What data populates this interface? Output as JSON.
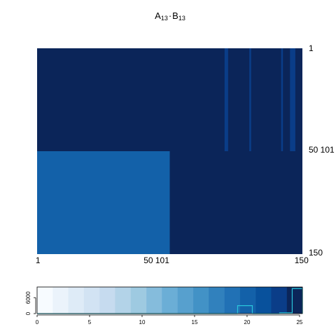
{
  "chart_data": {
    "type": "heatmap",
    "title": {
      "a": "A",
      "a_sub": "13",
      "dot": "·",
      "b": "B",
      "b_sub": "13"
    },
    "n_rows": 150,
    "n_cols": 150,
    "blocks": [
      {
        "rows": [
          1,
          75
        ],
        "cols": [
          1,
          150
        ],
        "value": 25
      },
      {
        "rows": [
          76,
          150
        ],
        "cols": [
          1,
          75
        ],
        "value": 19.8
      },
      {
        "rows": [
          76,
          150
        ],
        "cols": [
          76,
          150
        ],
        "value": 25
      },
      {
        "rows": [
          1,
          75
        ],
        "cols": [
          107,
          108
        ],
        "value": 23.5
      },
      {
        "rows": [
          1,
          75
        ],
        "cols": [
          121,
          121
        ],
        "value": 23.5
      },
      {
        "rows": [
          1,
          75
        ],
        "cols": [
          139,
          139
        ],
        "value": 23.5
      },
      {
        "rows": [
          1,
          75
        ],
        "cols": [
          144,
          146
        ],
        "value": 23.5
      }
    ],
    "row_ticks": [
      {
        "value": 1,
        "label": "1"
      },
      {
        "value": 75,
        "label": "50 101"
      },
      {
        "value": 150,
        "label": "150"
      }
    ],
    "col_ticks": [
      {
        "value": 1,
        "label": "1"
      },
      {
        "value": 68,
        "label": "50 101"
      },
      {
        "value": 150,
        "label": "150"
      }
    ],
    "key": {
      "breaks": [
        0,
        1.49,
        2.97,
        4.46,
        5.95,
        7.43,
        8.92,
        10.41,
        11.89,
        13.38,
        14.87,
        16.35,
        17.84,
        19.33,
        20.81,
        22.3,
        23.79,
        25.27
      ],
      "colors": [
        "#f7fbff",
        "#ebf3fb",
        "#deebf7",
        "#d2e3f3",
        "#c6dbef",
        "#b3d3e8",
        "#9ecae1",
        "#85bcdc",
        "#6baed6",
        "#57a0ce",
        "#4292c6",
        "#3181bd",
        "#2171b5",
        "#1361a9",
        "#08519c",
        "#0a3d88",
        "#0b2559"
      ],
      "xlim": [
        0,
        25.27
      ],
      "xticks": [
        0,
        5,
        10,
        15,
        20,
        25
      ],
      "ylim": [
        0,
        10000
      ],
      "yticks": [
        0,
        6000
      ],
      "hist_bins": [
        0,
        19.1,
        20.5,
        23.1,
        24.3,
        25.27
      ],
      "hist_counts": [
        0,
        3000,
        0,
        300,
        9400
      ],
      "hist_color": "#29c6dc"
    }
  }
}
